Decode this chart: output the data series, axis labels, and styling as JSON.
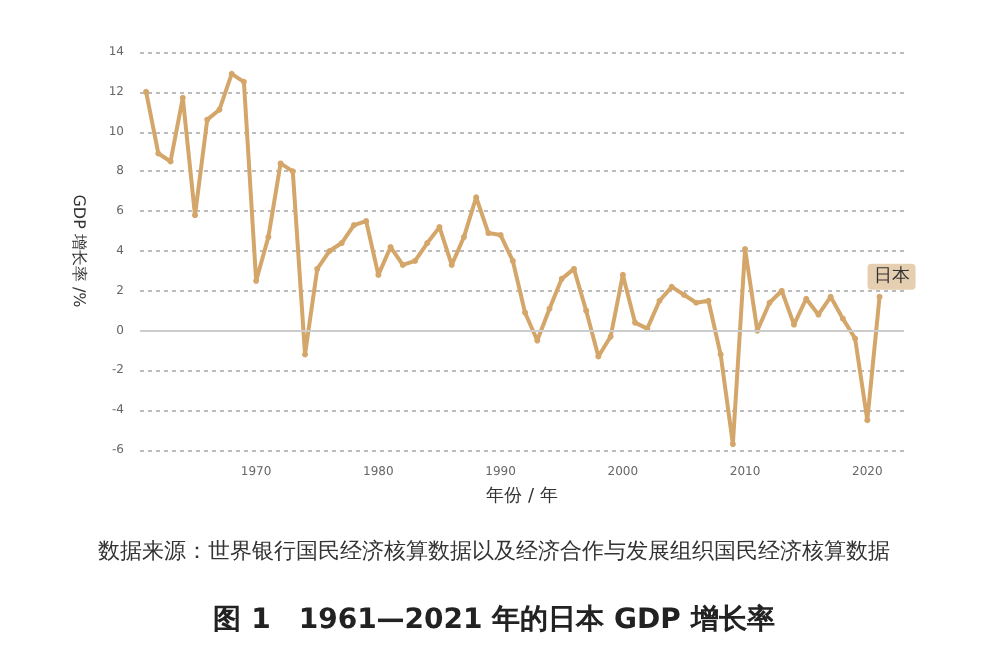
{
  "chart_data": {
    "type": "line",
    "title": "图 1　1961—2021 年的日本 GDP 增长率",
    "xlabel": "年份 / 年",
    "ylabel": "GDP 增长率 /%",
    "annotations": [
      "数据来源：世界银行国民经济核算数据以及经济合作与发展组织国民经济核算数据"
    ],
    "x": [
      1961,
      1962,
      1963,
      1964,
      1965,
      1966,
      1967,
      1968,
      1969,
      1970,
      1971,
      1972,
      1973,
      1974,
      1975,
      1976,
      1977,
      1978,
      1979,
      1980,
      1981,
      1982,
      1983,
      1984,
      1985,
      1986,
      1987,
      1988,
      1989,
      1990,
      1991,
      1992,
      1993,
      1994,
      1995,
      1996,
      1997,
      1998,
      1999,
      2000,
      2001,
      2002,
      2003,
      2004,
      2005,
      2006,
      2007,
      2008,
      2009,
      2010,
      2011,
      2012,
      2013,
      2014,
      2015,
      2016,
      2017,
      2018,
      2019,
      2020,
      2021
    ],
    "series": [
      {
        "name": "日本",
        "color": "#d4a66a",
        "values": [
          12.0,
          8.9,
          8.5,
          11.7,
          5.8,
          10.6,
          11.1,
          12.9,
          12.5,
          2.5,
          4.7,
          8.4,
          8.0,
          -1.2,
          3.1,
          4.0,
          4.4,
          5.3,
          5.5,
          2.8,
          4.2,
          3.3,
          3.5,
          4.4,
          5.2,
          3.3,
          4.7,
          6.7,
          4.9,
          4.8,
          3.5,
          0.9,
          -0.5,
          1.1,
          2.6,
          3.1,
          1.0,
          -1.3,
          -0.3,
          2.8,
          0.4,
          0.1,
          1.5,
          2.2,
          1.8,
          1.4,
          1.5,
          -1.2,
          -5.7,
          4.1,
          0.0,
          1.4,
          2.0,
          0.3,
          1.6,
          0.8,
          1.7,
          0.6,
          -0.4,
          -4.5,
          1.7
        ]
      }
    ],
    "xlim": [
      1960.5,
      2023
    ],
    "xticks": [
      1970,
      1980,
      1990,
      2000,
      2010,
      2020
    ],
    "ylim": [
      -6,
      14
    ],
    "yticks": [
      -6,
      -4,
      -2,
      0,
      2,
      4,
      6,
      8,
      10,
      12,
      14
    ],
    "ref_lines": [
      {
        "axis": "y",
        "value": 0,
        "color": "#cccccc"
      }
    ],
    "grid": "y",
    "legend": false,
    "marker": "circle",
    "line_style": "solid"
  }
}
